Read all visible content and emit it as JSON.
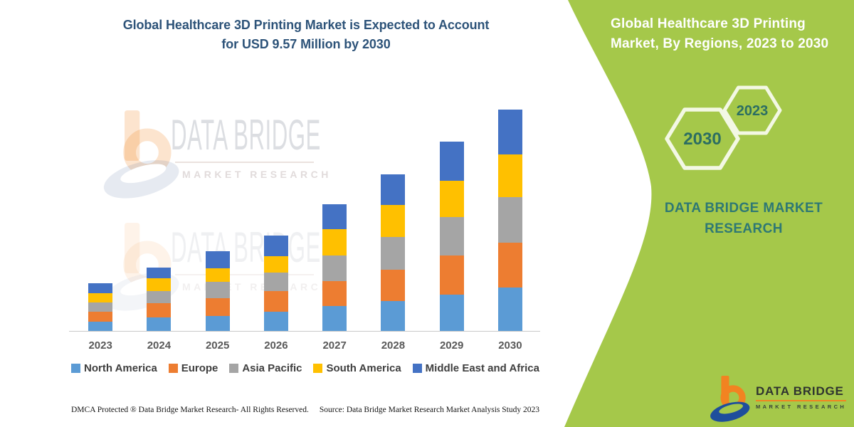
{
  "main_title": {
    "line1": "Global Healthcare 3D Printing Market is Expected to Account",
    "line2": "for USD 9.57 Million by 2030"
  },
  "chart_data": {
    "type": "bar",
    "stacked": true,
    "title": "Global Healthcare 3D Printing Market is Expected to Account for USD 9.57 Million by 2030",
    "unit": "USD Million",
    "categories": [
      "2023",
      "2024",
      "2025",
      "2026",
      "2027",
      "2028",
      "2029",
      "2030"
    ],
    "series": [
      {
        "name": "North America",
        "color": "#5B9BD5",
        "values": [
          0.41,
          0.58,
          0.65,
          0.82,
          1.07,
          1.3,
          1.58,
          1.87
        ]
      },
      {
        "name": "Europe",
        "color": "#ED7D31",
        "values": [
          0.41,
          0.62,
          0.77,
          0.9,
          1.09,
          1.36,
          1.67,
          1.95
        ]
      },
      {
        "name": "Asia Pacific",
        "color": "#A5A5A5",
        "values": [
          0.41,
          0.53,
          0.7,
          0.82,
          1.1,
          1.41,
          1.67,
          1.97
        ]
      },
      {
        "name": "South America",
        "color": "#FFC000",
        "values": [
          0.41,
          0.56,
          0.58,
          0.7,
          1.13,
          1.38,
          1.56,
          1.85
        ]
      },
      {
        "name": "Middle East and Africa",
        "color": "#4472C4",
        "values": [
          0.44,
          0.44,
          0.75,
          0.89,
          1.08,
          1.33,
          1.69,
          1.93
        ]
      }
    ],
    "totals": [
      2.08,
      2.73,
      3.45,
      4.13,
      5.47,
      6.78,
      8.17,
      9.57
    ],
    "ylim": [
      0,
      10
    ],
    "grid": false,
    "axes_labeled": false,
    "legend_position": "bottom"
  },
  "watermark": {
    "title": "DATA BRIDGE",
    "subtitle": "MARKET RESEARCH"
  },
  "side_panel": {
    "title": "Global Healthcare 3D Printing Market, By Regions, 2023 to 2030",
    "hexagon_large": "2030",
    "hexagon_small": "2023",
    "brand_line1": "DATA BRIDGE MARKET",
    "brand_line2": "RESEARCH",
    "background_color": "#A5C84A",
    "accent_text_color": "#2C6E62"
  },
  "logo": {
    "title": "DATA BRIDGE",
    "subtitle": "MARKET RESEARCH"
  },
  "footer": {
    "left": "DMCA Protected ® Data Bridge Market Research-  All Rights Reserved.",
    "right": "Source: Data Bridge Market Research  Market Analysis Study 2023"
  }
}
